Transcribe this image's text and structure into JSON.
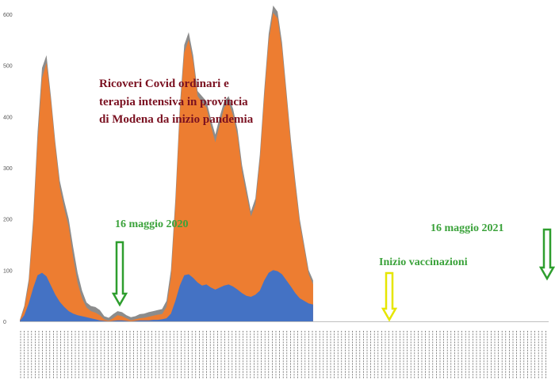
{
  "chart_data": {
    "type": "area",
    "title": [
      "Ricoveri Covid ordinari e",
      "terapia intensiva in provincia",
      "di Modena da inizio pandemia"
    ],
    "xlabel": "",
    "ylabel": "",
    "ylim": [
      0,
      600
    ],
    "yticks": [
      "0",
      "100",
      "200",
      "300",
      "400",
      "500",
      "600"
    ],
    "grid": false,
    "legend": "none",
    "colors": {
      "total": "#8c8c8c",
      "ordinari": "#ed7d31",
      "intensiva": "#4472c4",
      "title": "#7a1020",
      "annotation": "#3aa23a",
      "arrow_green": "#2e9e2e",
      "arrow_yellow": "#e6e600"
    },
    "x_index": [
      0,
      4,
      8,
      12,
      16,
      20,
      24,
      28,
      32,
      36,
      40,
      44,
      48,
      52,
      56,
      60,
      64,
      68,
      72,
      76,
      80,
      84,
      88,
      92,
      96,
      100,
      104,
      108,
      112,
      116,
      120,
      124,
      128,
      132,
      136,
      140,
      144,
      148,
      152,
      156,
      160,
      164,
      168,
      172,
      176,
      180,
      184,
      188,
      192,
      196,
      200,
      204,
      208,
      212,
      216,
      220,
      224,
      228,
      232,
      236,
      240,
      244,
      248,
      252,
      256,
      260,
      264,
      268,
      272,
      276,
      280,
      284,
      288,
      292,
      296,
      300,
      304,
      308,
      312,
      316,
      320,
      324,
      328,
      332,
      336,
      340,
      344,
      348,
      352,
      356,
      360,
      364,
      368,
      372,
      376,
      380,
      384,
      388,
      392,
      396,
      400,
      404,
      408,
      412,
      416,
      420,
      424,
      428,
      432,
      436,
      440,
      444,
      448,
      452,
      456,
      460,
      464,
      468,
      472,
      476
    ],
    "series": [
      {
        "key": "total",
        "values": [
          3,
          30,
          82,
          200,
          370,
          495,
          520,
          440,
          350,
          275,
          235,
          200,
          145,
          95,
          60,
          37,
          30,
          28,
          22,
          10,
          7,
          14,
          20,
          18,
          12,
          8,
          10,
          14,
          15,
          18,
          20,
          22,
          24,
          40,
          100,
          240,
          420,
          540,
          565,
          520,
          450,
          440,
          430,
          395,
          365,
          400,
          430,
          440,
          415,
          375,
          305,
          260,
          215,
          240,
          325,
          452,
          562,
          617,
          605,
          545,
          450,
          355,
          275,
          200,
          150,
          100,
          80
        ],
        "rendered_until": 66
      },
      {
        "key": "ordinari",
        "values": [
          2,
          25,
          72,
          185,
          350,
          475,
          505,
          430,
          340,
          262,
          220,
          185,
          125,
          75,
          45,
          27,
          20,
          17,
          12,
          4,
          1,
          6,
          12,
          10,
          6,
          2,
          4,
          6,
          7,
          9,
          11,
          13,
          14,
          28,
          85,
          225,
          405,
          525,
          550,
          508,
          440,
          428,
          418,
          382,
          350,
          385,
          418,
          428,
          402,
          362,
          292,
          248,
          205,
          228,
          312,
          438,
          548,
          603,
          592,
          532,
          438,
          343,
          264,
          190,
          142,
          92,
          72
        ],
        "rendered_until": 66
      },
      {
        "key": "intensiva",
        "values": [
          1,
          12,
          35,
          65,
          90,
          95,
          88,
          70,
          52,
          38,
          28,
          20,
          15,
          12,
          10,
          8,
          6,
          4,
          2,
          1,
          0,
          1,
          2,
          2,
          1,
          0,
          1,
          2,
          2,
          2,
          3,
          3,
          4,
          6,
          15,
          40,
          70,
          90,
          92,
          85,
          76,
          70,
          72,
          66,
          62,
          66,
          70,
          72,
          68,
          62,
          55,
          50,
          48,
          52,
          60,
          80,
          95,
          100,
          98,
          92,
          80,
          68,
          55,
          45,
          40,
          35,
          33
        ],
        "rendered_until": 66
      }
    ],
    "annotations": [
      {
        "key": "anno-16-maggio-2020",
        "text": "16 maggio 2020",
        "x": 38,
        "arrow": "green"
      },
      {
        "key": "anno-inizio-vaccinazioni",
        "text": "Inizio vaccinazioni",
        "x": 293,
        "arrow": "yellow"
      },
      {
        "key": "anno-16-maggio-2021",
        "text": "16 maggio 2021",
        "x": 403,
        "arrow": "green"
      }
    ]
  }
}
